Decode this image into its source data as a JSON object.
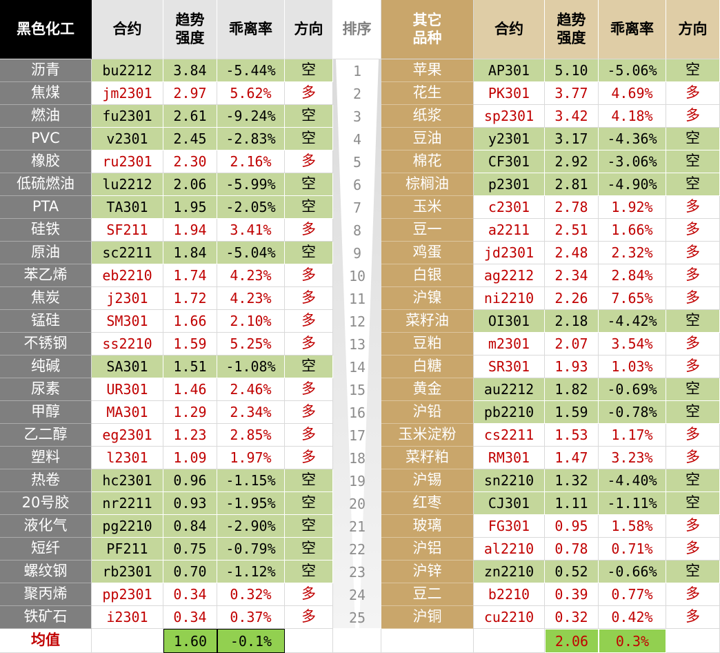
{
  "header": {
    "left": [
      "黑色化工",
      "合约",
      "趋势\n强度",
      "乖离率",
      "方向"
    ],
    "rank": "排序",
    "right": [
      "其它\n品种",
      "合约",
      "趋势\n强度",
      "乖离率",
      "方向"
    ]
  },
  "rows": [
    {
      "rank": "1",
      "left": [
        "沥青",
        "bu2212",
        "3.84",
        "-5.44%",
        "空"
      ],
      "left_green": true,
      "right": [
        "苹果",
        "AP301",
        "5.10",
        "-5.06%",
        "空"
      ],
      "right_green": true
    },
    {
      "rank": "2",
      "left": [
        "焦煤",
        "jm2301",
        "2.97",
        "5.62%",
        "多"
      ],
      "left_green": false,
      "right": [
        "花生",
        "PK301",
        "3.77",
        "4.69%",
        "多"
      ],
      "right_green": false
    },
    {
      "rank": "3",
      "left": [
        "燃油",
        "fu2301",
        "2.61",
        "-9.24%",
        "空"
      ],
      "left_green": true,
      "right": [
        "纸浆",
        "sp2301",
        "3.42",
        "4.18%",
        "多"
      ],
      "right_green": false
    },
    {
      "rank": "4",
      "left": [
        "PVC",
        "v2301",
        "2.45",
        "-2.83%",
        "空"
      ],
      "left_green": true,
      "right": [
        "豆油",
        "y2301",
        "3.17",
        "-4.36%",
        "空"
      ],
      "right_green": true
    },
    {
      "rank": "5",
      "left": [
        "橡胶",
        "ru2301",
        "2.30",
        "2.16%",
        "多"
      ],
      "left_green": false,
      "right": [
        "棉花",
        "CF301",
        "2.92",
        "-3.06%",
        "空"
      ],
      "right_green": true
    },
    {
      "rank": "6",
      "left": [
        "低硫燃油",
        "lu2212",
        "2.06",
        "-5.99%",
        "空"
      ],
      "left_green": true,
      "right": [
        "棕榈油",
        "p2301",
        "2.81",
        "-4.90%",
        "空"
      ],
      "right_green": true
    },
    {
      "rank": "7",
      "left": [
        "PTA",
        "TA301",
        "1.95",
        "-2.05%",
        "空"
      ],
      "left_green": true,
      "right": [
        "玉米",
        "c2301",
        "2.78",
        "1.92%",
        "多"
      ],
      "right_green": false
    },
    {
      "rank": "8",
      "left": [
        "硅铁",
        "SF211",
        "1.94",
        "3.41%",
        "多"
      ],
      "left_green": false,
      "right": [
        "豆一",
        "a2211",
        "2.51",
        "1.66%",
        "多"
      ],
      "right_green": false
    },
    {
      "rank": "9",
      "left": [
        "原油",
        "sc2211",
        "1.84",
        "-5.04%",
        "空"
      ],
      "left_green": true,
      "right": [
        "鸡蛋",
        "jd2301",
        "2.48",
        "2.32%",
        "多"
      ],
      "right_green": false
    },
    {
      "rank": "10",
      "left": [
        "苯乙烯",
        "eb2210",
        "1.74",
        "4.23%",
        "多"
      ],
      "left_green": false,
      "right": [
        "白银",
        "ag2212",
        "2.34",
        "2.84%",
        "多"
      ],
      "right_green": false
    },
    {
      "rank": "11",
      "left": [
        "焦炭",
        "j2301",
        "1.72",
        "4.23%",
        "多"
      ],
      "left_green": false,
      "right": [
        "沪镍",
        "ni2210",
        "2.26",
        "7.65%",
        "多"
      ],
      "right_green": false
    },
    {
      "rank": "12",
      "left": [
        "锰硅",
        "SM301",
        "1.66",
        "2.10%",
        "多"
      ],
      "left_green": false,
      "right": [
        "菜籽油",
        "OI301",
        "2.18",
        "-4.42%",
        "空"
      ],
      "right_green": true
    },
    {
      "rank": "13",
      "left": [
        "不锈钢",
        "ss2210",
        "1.59",
        "5.25%",
        "多"
      ],
      "left_green": false,
      "right": [
        "豆粕",
        "m2301",
        "2.07",
        "3.54%",
        "多"
      ],
      "right_green": false
    },
    {
      "rank": "14",
      "left": [
        "纯碱",
        "SA301",
        "1.51",
        "-1.08%",
        "空"
      ],
      "left_green": true,
      "right": [
        "白糖",
        "SR301",
        "1.93",
        "1.03%",
        "多"
      ],
      "right_green": false
    },
    {
      "rank": "15",
      "left": [
        "尿素",
        "UR301",
        "1.46",
        "2.46%",
        "多"
      ],
      "left_green": false,
      "right": [
        "黄金",
        "au2212",
        "1.82",
        "-0.69%",
        "空"
      ],
      "right_green": true
    },
    {
      "rank": "16",
      "left": [
        "甲醇",
        "MA301",
        "1.29",
        "2.34%",
        "多"
      ],
      "left_green": false,
      "right": [
        "沪铅",
        "pb2210",
        "1.59",
        "-0.78%",
        "空"
      ],
      "right_green": true
    },
    {
      "rank": "17",
      "left": [
        "乙二醇",
        "eg2301",
        "1.23",
        "2.85%",
        "多"
      ],
      "left_green": false,
      "right": [
        "玉米淀粉",
        "cs2211",
        "1.53",
        "1.17%",
        "多"
      ],
      "right_green": false
    },
    {
      "rank": "18",
      "left": [
        "塑料",
        "l2301",
        "1.09",
        "1.97%",
        "多"
      ],
      "left_green": false,
      "right": [
        "菜籽粕",
        "RM301",
        "1.47",
        "3.23%",
        "多"
      ],
      "right_green": false
    },
    {
      "rank": "19",
      "left": [
        "热卷",
        "hc2301",
        "0.96",
        "-1.15%",
        "空"
      ],
      "left_green": true,
      "right": [
        "沪锡",
        "sn2210",
        "1.32",
        "-4.40%",
        "空"
      ],
      "right_green": true
    },
    {
      "rank": "20",
      "left": [
        "20号胶",
        "nr2211",
        "0.93",
        "-1.95%",
        "空"
      ],
      "left_green": true,
      "right": [
        "红枣",
        "CJ301",
        "1.11",
        "-1.11%",
        "空"
      ],
      "right_green": true
    },
    {
      "rank": "21",
      "left": [
        "液化气",
        "pg2210",
        "0.84",
        "-2.90%",
        "空"
      ],
      "left_green": true,
      "right": [
        "玻璃",
        "FG301",
        "0.95",
        "1.58%",
        "多"
      ],
      "right_green": false
    },
    {
      "rank": "22",
      "left": [
        "短纤",
        "PF211",
        "0.75",
        "-0.79%",
        "空"
      ],
      "left_green": true,
      "right": [
        "沪铝",
        "al2210",
        "0.78",
        "0.71%",
        "多"
      ],
      "right_green": false
    },
    {
      "rank": "23",
      "left": [
        "螺纹钢",
        "rb2301",
        "0.70",
        "-1.12%",
        "空"
      ],
      "left_green": true,
      "right": [
        "沪锌",
        "zn2210",
        "0.52",
        "-0.66%",
        "空"
      ],
      "right_green": true
    },
    {
      "rank": "24",
      "left": [
        "聚丙烯",
        "pp2301",
        "0.34",
        "0.32%",
        "多"
      ],
      "left_green": false,
      "right": [
        "豆二",
        "b2210",
        "0.39",
        "0.77%",
        "多"
      ],
      "right_green": false
    },
    {
      "rank": "25",
      "left": [
        "铁矿石",
        "i2301",
        "0.34",
        "0.37%",
        "多"
      ],
      "left_green": false,
      "right": [
        "沪铜",
        "cu2210",
        "0.32",
        "0.42%",
        "多"
      ],
      "right_green": false
    }
  ],
  "footer": {
    "label": "均值",
    "left": [
      "1.60",
      "-0.1%"
    ],
    "right": [
      "2.06",
      "0.3%"
    ]
  }
}
